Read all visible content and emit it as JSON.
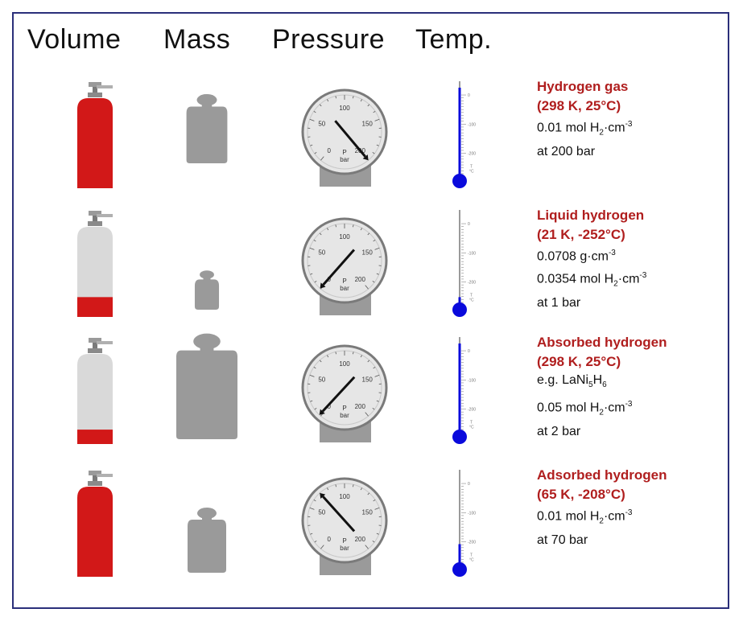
{
  "headers": {
    "volume": "Volume",
    "mass": "Mass",
    "pressure": "Pressure",
    "temp": "Temp."
  },
  "gauge_labels": {
    "ticks": [
      "0",
      "50",
      "100",
      "150",
      "200"
    ],
    "unit_symbol": "P",
    "unit": "bar"
  },
  "thermo_labels": {
    "ticks": [
      "0",
      "-100",
      "-200"
    ],
    "symbol": "T",
    "unit": "°C"
  },
  "colors": {
    "accent_red": "#d21818",
    "label_red": "#b01e1e",
    "cylinder_grey": "#d9d9d9",
    "weight_grey": "#9a9a9a",
    "mercury_blue": "#0a0adc",
    "frame_blue": "#2b2f7a"
  },
  "rows": [
    {
      "title": "Hydrogen gas",
      "conditions": "(298 K, 25°C)",
      "lines": [
        {
          "pre": "0.01 mol H",
          "sub": "2",
          "mid": "·cm",
          "sup": "-3"
        },
        {
          "pre": "at 200 bar"
        }
      ],
      "volume_fill_fraction": 1.0,
      "relative_mass": 0.55,
      "pressure_bar": 200,
      "temperature_c": 25
    },
    {
      "title": "Liquid hydrogen",
      "conditions": "(21 K, -252°C)",
      "lines": [
        {
          "pre": "0.0708 g·cm",
          "sup": "-3"
        },
        {
          "pre": "0.0354 mol H",
          "sub": "2",
          "mid": "·cm",
          "sup": "-3"
        },
        {
          "pre": "at 1 bar"
        }
      ],
      "volume_fill_fraction": 0.22,
      "relative_mass": 0.18,
      "pressure_bar": 1,
      "temperature_c": -252
    },
    {
      "title": "Absorbed hydrogen",
      "conditions": "(298 K, 25°C)",
      "lines": [
        {
          "pre": "e.g. LaNi",
          "sub": "5",
          "mid": "H",
          "sub2": "6"
        },
        {
          "pre": "0.05 mol H",
          "sub": "2",
          "mid": "·cm",
          "sup": "-3"
        },
        {
          "pre": "at 2 bar"
        }
      ],
      "volume_fill_fraction": 0.16,
      "relative_mass": 1.0,
      "pressure_bar": 2,
      "temperature_c": 25
    },
    {
      "title": "Adsorbed hydrogen",
      "conditions": "(65 K, -208°C)",
      "lines": [
        {
          "pre": "0.01 mol H",
          "sub": "2",
          "mid": "·cm",
          "sup": "-3"
        },
        {
          "pre": "at 70 bar"
        }
      ],
      "volume_fill_fraction": 1.0,
      "relative_mass": 0.5,
      "pressure_bar": 70,
      "temperature_c": -208
    }
  ]
}
